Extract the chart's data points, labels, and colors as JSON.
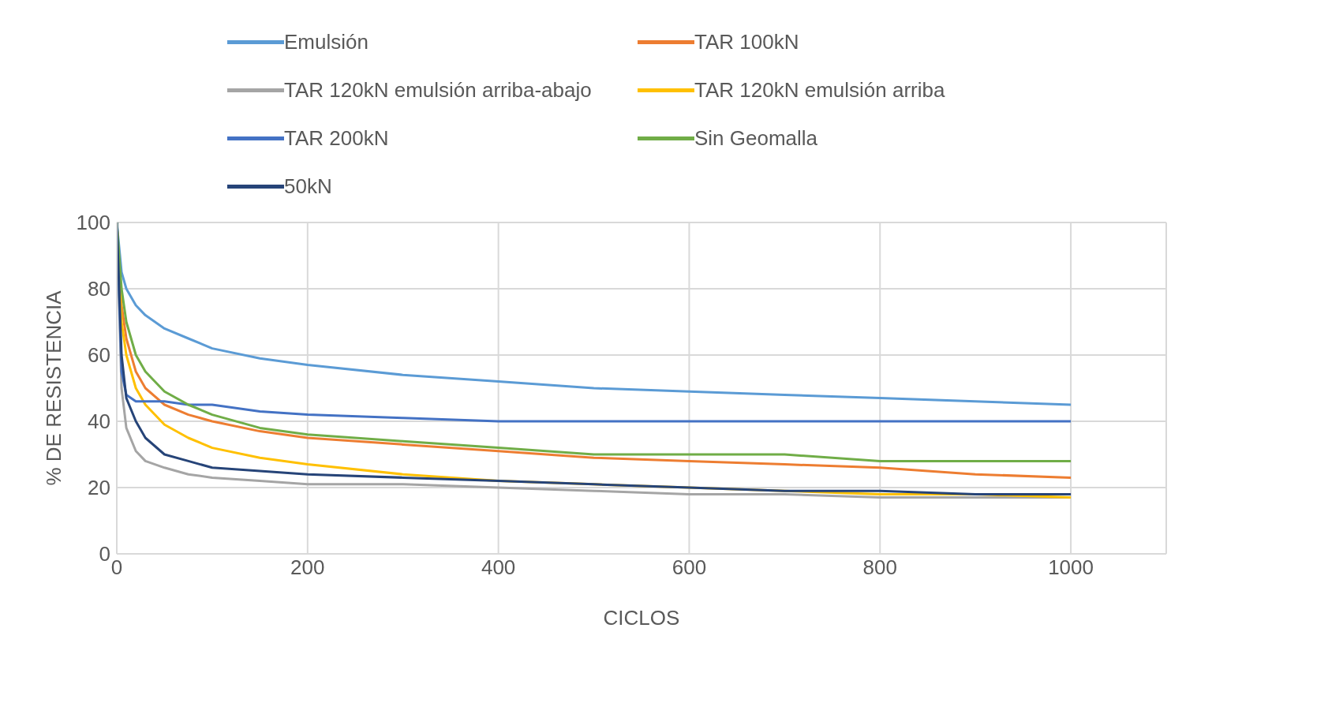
{
  "chart_data": {
    "type": "line",
    "xlabel": "CICLOS",
    "ylabel": "% DE RESISTENCIA",
    "x": [
      0,
      5,
      10,
      20,
      30,
      50,
      75,
      100,
      150,
      200,
      300,
      400,
      500,
      600,
      700,
      800,
      900,
      1000
    ],
    "series": [
      {
        "name": "Emulsión",
        "color": "#5b9bd5",
        "values": [
          100,
          85,
          80,
          75,
          72,
          68,
          65,
          62,
          59,
          57,
          54,
          52,
          50,
          49,
          48,
          47,
          46,
          45
        ]
      },
      {
        "name": "TAR 100kN",
        "color": "#ed7d31",
        "values": [
          100,
          75,
          65,
          55,
          50,
          45,
          42,
          40,
          37,
          35,
          33,
          31,
          29,
          28,
          27,
          26,
          24,
          23
        ]
      },
      {
        "name": "TAR 120kN emulsión arriba-abajo",
        "color": "#a5a5a5",
        "values": [
          100,
          50,
          38,
          31,
          28,
          26,
          24,
          23,
          22,
          21,
          21,
          20,
          19,
          18,
          18,
          17,
          17,
          17
        ]
      },
      {
        "name": "TAR 120kN emulsión arriba",
        "color": "#ffc000",
        "values": [
          100,
          70,
          60,
          50,
          45,
          39,
          35,
          32,
          29,
          27,
          24,
          22,
          21,
          20,
          19,
          18,
          18,
          17
        ]
      },
      {
        "name": "TAR 200kN",
        "color": "#4472c4",
        "values": [
          100,
          55,
          48,
          46,
          46,
          46,
          45,
          45,
          43,
          42,
          41,
          40,
          40,
          40,
          40,
          40,
          40,
          40
        ]
      },
      {
        "name": "Sin Geomalla",
        "color": "#70ad47",
        "values": [
          100,
          80,
          70,
          60,
          55,
          49,
          45,
          42,
          38,
          36,
          34,
          32,
          30,
          30,
          30,
          28,
          28,
          28
        ]
      },
      {
        "name": "50kN",
        "color": "#264478",
        "values": [
          100,
          60,
          47,
          40,
          35,
          30,
          28,
          26,
          25,
          24,
          23,
          22,
          21,
          20,
          19,
          19,
          18,
          18
        ]
      }
    ],
    "xlim": [
      0,
      1100
    ],
    "xticks": [
      0,
      200,
      400,
      600,
      800,
      1000
    ],
    "ylim": [
      0,
      100
    ],
    "yticks": [
      0,
      20,
      40,
      60,
      80,
      100
    ],
    "grid": true,
    "legend": "top",
    "marker": "none",
    "line_style": "solid"
  }
}
